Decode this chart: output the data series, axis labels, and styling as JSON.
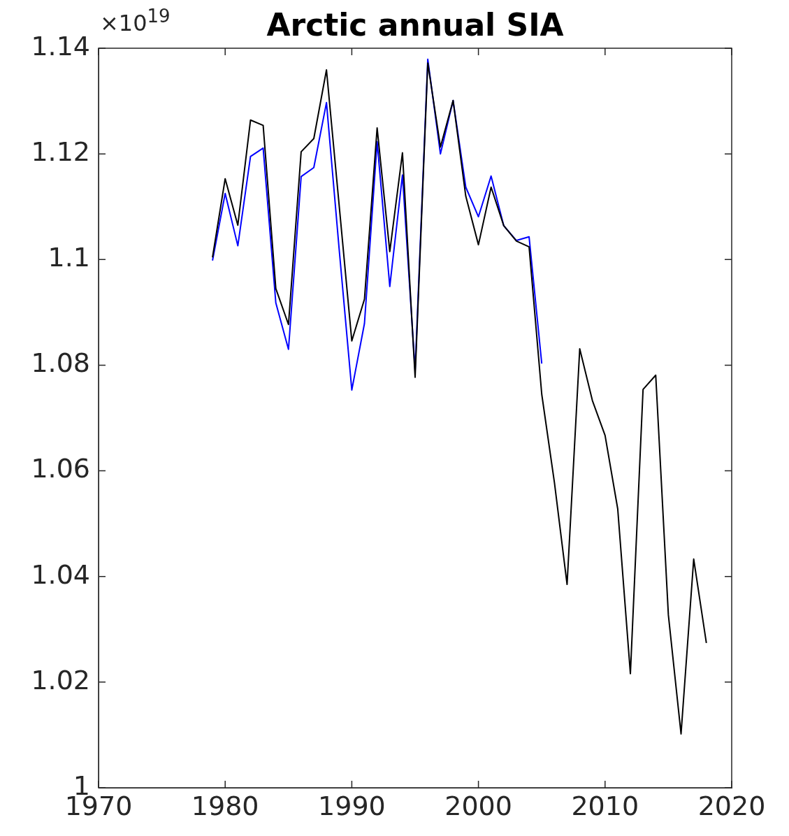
{
  "chart_data": {
    "type": "line",
    "title": "Arctic annual SIA",
    "annotations": [
      "×10$^{19}$"
    ],
    "x": [
      1979,
      1980,
      1981,
      1982,
      1983,
      1984,
      1985,
      1986,
      1987,
      1988,
      1989,
      1990,
      1991,
      1992,
      1993,
      1994,
      1995,
      1996,
      1997,
      1998,
      1999,
      2000,
      2001,
      2002,
      2003,
      2004,
      2005,
      2006,
      2007,
      2008,
      2009,
      2010,
      2011,
      2012,
      2013,
      2014,
      2015,
      2016,
      2017,
      2018
    ],
    "series": [
      {
        "color": "#000000",
        "values": [
          1.1004,
          1.1153,
          1.1065,
          1.1264,
          1.1254,
          1.0945,
          1.0877,
          1.1204,
          1.1229,
          1.1359,
          1.1103,
          1.0846,
          1.0925,
          1.1249,
          1.1015,
          1.1202,
          1.0777,
          1.1372,
          1.1213,
          1.1301,
          1.112,
          1.1028,
          1.1137,
          1.1064,
          1.1035,
          1.1024,
          1.0745,
          1.0578,
          1.0385,
          1.0831,
          1.0733,
          1.0667,
          1.0528,
          1.0216,
          1.0754,
          1.0781,
          1.0327,
          1.0102,
          1.0433,
          1.0274
        ]
      },
      {
        "color": "#0000ff",
        "values": [
          1.0998,
          1.1125,
          1.1026,
          1.1195,
          1.1211,
          1.0918,
          1.083,
          1.1157,
          1.1174,
          1.1297,
          1.102,
          1.0753,
          1.0879,
          1.1223,
          1.0949,
          1.116,
          1.079,
          1.1379,
          1.12,
          1.1301,
          1.1137,
          1.1081,
          1.1158,
          1.1064,
          1.1036,
          1.1043,
          1.0803,
          null,
          null,
          null,
          null,
          null,
          null,
          null,
          null,
          null,
          null,
          null,
          null,
          null
        ]
      }
    ],
    "xlim": [
      1970,
      2020
    ],
    "xticks": [
      1970,
      1980,
      1990,
      2000,
      2010,
      2020
    ],
    "ylim": [
      1,
      1.14
    ],
    "yticks": [
      1,
      1.02,
      1.04,
      1.06,
      1.08,
      1.1,
      1.12,
      1.14
    ],
    "grid": false,
    "legend": false,
    "marker": "none",
    "line_style": "solid"
  }
}
